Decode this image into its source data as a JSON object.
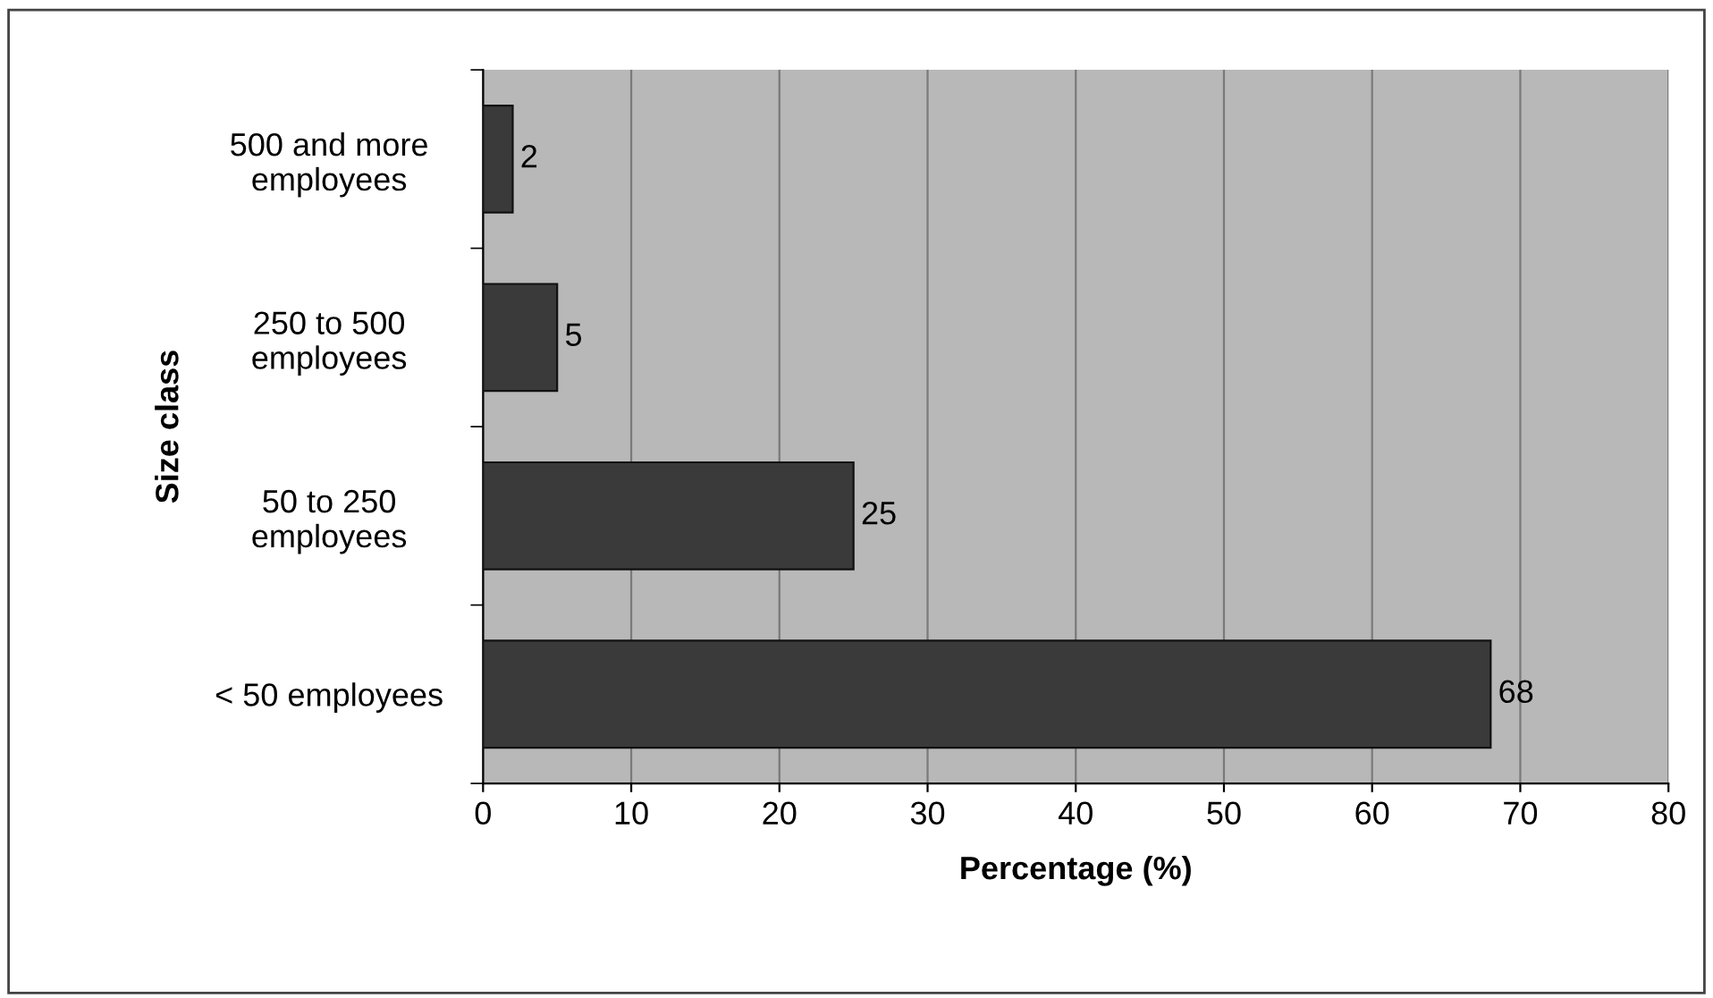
{
  "chart_data": {
    "type": "bar",
    "orientation": "horizontal",
    "xlabel": "Percentage (%)",
    "ylabel": "Size class",
    "categories": [
      "500 and more\nemployees",
      "250 to 500\nemployees",
      "50 to 250\nemployees",
      "< 50 employees"
    ],
    "values": [
      2,
      5,
      25,
      68
    ],
    "color": "#3a3a3a",
    "xlim": [
      0,
      80
    ],
    "xticks": [
      0,
      10,
      20,
      30,
      40,
      50,
      60,
      70,
      80
    ],
    "grid": "x",
    "data_labels": true,
    "legend": false
  }
}
